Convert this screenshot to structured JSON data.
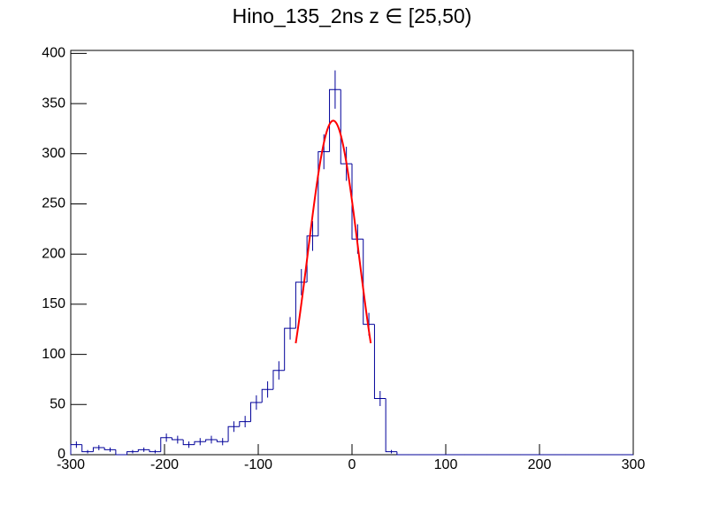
{
  "chart_data": {
    "type": "histogram",
    "title": "Hino_135_2ns z  ∈ [25,50)",
    "bins": [
      -300,
      -288,
      -276,
      -264,
      -252,
      -240,
      -228,
      -216,
      -204,
      -192,
      -180,
      -168,
      -156,
      -144,
      -132,
      -120,
      -108,
      -96,
      -84,
      -72,
      -60,
      -48,
      -36,
      -24,
      -12,
      0,
      12,
      24,
      36,
      48,
      60,
      72,
      84,
      96,
      108,
      120,
      132,
      144,
      156,
      168,
      180,
      192,
      204,
      216,
      228,
      240,
      252,
      264,
      276,
      288,
      300
    ],
    "values": [
      10,
      3,
      7,
      5,
      0,
      3,
      5,
      3,
      17,
      15,
      10,
      13,
      15,
      13,
      28,
      33,
      52,
      65,
      84,
      126,
      172,
      218,
      302,
      364,
      290,
      215,
      130,
      56,
      3,
      0,
      0,
      0,
      0,
      0,
      0,
      0,
      0,
      0,
      0,
      0,
      0,
      0,
      0,
      0,
      0,
      0,
      0,
      0,
      0,
      0
    ],
    "errors": [
      3.2,
      1.7,
      2.6,
      2.2,
      0,
      1.7,
      2.2,
      1.7,
      4.1,
      3.9,
      3.2,
      3.6,
      3.9,
      3.6,
      5.3,
      5.7,
      7.2,
      8.1,
      9.2,
      11.2,
      13.1,
      14.8,
      17.4,
      19.1,
      17.0,
      14.7,
      11.4,
      7.5,
      1.7,
      0,
      0,
      0,
      0,
      0,
      0,
      0,
      0,
      0,
      0,
      0,
      0,
      0,
      0,
      0,
      0,
      0,
      0,
      0,
      0,
      0
    ],
    "color": "#000099",
    "fit": {
      "constant": 333,
      "mean": -20,
      "sigma": 27,
      "range": [
        -60,
        20
      ],
      "color": "#ff0000"
    },
    "xlim": [
      -300,
      300
    ],
    "xticks": [
      -300,
      -200,
      -100,
      0,
      100,
      200,
      300
    ],
    "ylim": [
      0,
      403
    ],
    "yticks": [
      0,
      50,
      100,
      150,
      200,
      250,
      300,
      350,
      400
    ]
  }
}
